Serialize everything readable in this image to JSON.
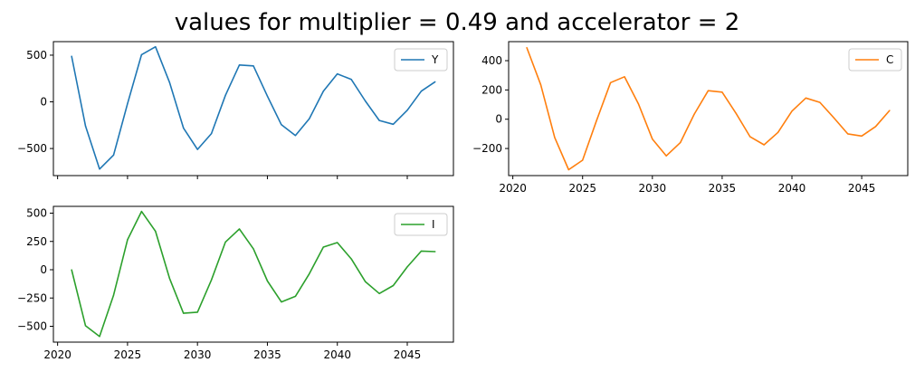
{
  "figure": {
    "title": "values for multiplier = 0.49 and accelerator = 2"
  },
  "chart_data": [
    {
      "type": "line",
      "title": "",
      "xlabel": "",
      "ylabel": "",
      "x": [
        2021,
        2022,
        2023,
        2024,
        2025,
        2026,
        2027,
        2028,
        2029,
        2030,
        2031,
        2032,
        2033,
        2034,
        2035,
        2036,
        2037,
        2038,
        2039,
        2040,
        2041,
        2042,
        2043,
        2044,
        2045,
        2046,
        2047
      ],
      "series": [
        {
          "name": "Y",
          "color": "#1f77b4",
          "values": [
            490,
            -260,
            -720,
            -570,
            -20,
            505,
            590,
            210,
            -280,
            -510,
            -340,
            70,
            395,
            385,
            60,
            -245,
            -360,
            -180,
            115,
            300,
            240,
            10,
            -200,
            -240,
            -90,
            115,
            215
          ]
        }
      ],
      "xlim": [
        2019.7,
        2048.3
      ],
      "ylim": [
        -790,
        645
      ],
      "xticks": [
        2020,
        2025,
        2030,
        2035,
        2040,
        2045
      ],
      "xtick_labels": [
        "",
        "",
        "",
        "",
        "",
        ""
      ],
      "yticks": [
        500,
        0,
        -500
      ],
      "ytick_labels": [
        "500",
        "0",
        "−500"
      ],
      "legend": "upper right",
      "grid": false
    },
    {
      "type": "line",
      "title": "",
      "xlabel": "",
      "ylabel": "",
      "x": [
        2021,
        2022,
        2023,
        2024,
        2025,
        2026,
        2027,
        2028,
        2029,
        2030,
        2031,
        2032,
        2033,
        2034,
        2035,
        2036,
        2037,
        2038,
        2039,
        2040,
        2041,
        2042,
        2043,
        2044,
        2045,
        2046,
        2047
      ],
      "series": [
        {
          "name": "C",
          "color": "#ff7f0e",
          "values": [
            490,
            235,
            -125,
            -345,
            -280,
            -10,
            250,
            290,
            105,
            -135,
            -250,
            -160,
            35,
            195,
            185,
            40,
            -120,
            -175,
            -90,
            55,
            145,
            115,
            10,
            -100,
            -115,
            -50,
            60
          ]
        }
      ],
      "xlim": [
        2019.7,
        2048.3
      ],
      "ylim": [
        -385,
        530
      ],
      "xticks": [
        2020,
        2025,
        2030,
        2035,
        2040,
        2045
      ],
      "xtick_labels": [
        "2020",
        "2025",
        "2030",
        "2035",
        "2040",
        "2045"
      ],
      "yticks": [
        400,
        200,
        0,
        -200
      ],
      "ytick_labels": [
        "400",
        "200",
        "0",
        "−200"
      ],
      "legend": "upper right",
      "grid": false
    },
    {
      "type": "line",
      "title": "",
      "xlabel": "",
      "ylabel": "",
      "x": [
        2021,
        2022,
        2023,
        2024,
        2025,
        2026,
        2027,
        2028,
        2029,
        2030,
        2031,
        2032,
        2033,
        2034,
        2035,
        2036,
        2037,
        2038,
        2039,
        2040,
        2041,
        2042,
        2043,
        2044,
        2045,
        2046,
        2047
      ],
      "series": [
        {
          "name": "I",
          "color": "#2ca02c",
          "values": [
            0,
            -495,
            -590,
            -225,
            265,
            515,
            340,
            -75,
            -385,
            -375,
            -90,
            245,
            360,
            185,
            -100,
            -285,
            -235,
            -35,
            200,
            240,
            95,
            -105,
            -210,
            -140,
            25,
            165,
            160
          ]
        }
      ],
      "xlim": [
        2019.7,
        2048.3
      ],
      "ylim": [
        -640,
        560
      ],
      "xticks": [
        2020,
        2025,
        2030,
        2035,
        2040,
        2045
      ],
      "xtick_labels": [
        "2020",
        "2025",
        "2030",
        "2035",
        "2040",
        "2045"
      ],
      "yticks": [
        500,
        250,
        0,
        -250,
        -500
      ],
      "ytick_labels": [
        "500",
        "250",
        "0",
        "−250",
        "−500"
      ],
      "legend": "upper right",
      "grid": false
    }
  ]
}
